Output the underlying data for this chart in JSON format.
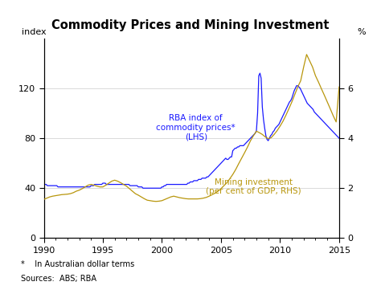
{
  "title": "Commodity Prices and Mining Investment",
  "left_label": "index",
  "right_label": "%",
  "footnote1": "*    In Australian dollar terms",
  "footnote2": "Sources:  ABS; RBA",
  "lhs_label": "RBA index of\ncommodity prices*\n(LHS)",
  "rhs_label": "Mining investment\n(per cent of GDP, RHS)",
  "lhs_color": "#1a1aff",
  "rhs_color": "#b8960c",
  "xlim": [
    1990,
    2015
  ],
  "lhs_ylim": [
    0,
    160
  ],
  "rhs_ylim": [
    0,
    8
  ],
  "lhs_yticks": [
    0,
    40,
    80,
    120
  ],
  "rhs_yticks": [
    0,
    2,
    4,
    6
  ],
  "xticks": [
    1990,
    1995,
    2000,
    2005,
    2010,
    2015
  ],
  "commodity_years": [
    1990.0,
    1990.1,
    1990.2,
    1990.3,
    1990.4,
    1990.5,
    1990.6,
    1990.7,
    1990.8,
    1990.9,
    1991.0,
    1991.1,
    1991.2,
    1991.3,
    1991.4,
    1991.5,
    1991.6,
    1991.7,
    1991.8,
    1991.9,
    1992.0,
    1992.1,
    1992.2,
    1992.3,
    1992.4,
    1992.5,
    1992.6,
    1992.7,
    1992.8,
    1992.9,
    1993.0,
    1993.1,
    1993.2,
    1993.3,
    1993.4,
    1993.5,
    1993.6,
    1993.7,
    1993.8,
    1993.9,
    1994.0,
    1994.1,
    1994.2,
    1994.3,
    1994.4,
    1994.5,
    1994.6,
    1994.7,
    1994.8,
    1994.9,
    1995.0,
    1995.1,
    1995.2,
    1995.3,
    1995.4,
    1995.5,
    1995.6,
    1995.7,
    1995.8,
    1995.9,
    1996.0,
    1996.1,
    1996.2,
    1996.3,
    1996.4,
    1996.5,
    1996.6,
    1996.7,
    1996.8,
    1996.9,
    1997.0,
    1997.1,
    1997.2,
    1997.3,
    1997.4,
    1997.5,
    1997.6,
    1997.7,
    1997.8,
    1997.9,
    1998.0,
    1998.1,
    1998.2,
    1998.3,
    1998.4,
    1998.5,
    1998.6,
    1998.7,
    1998.8,
    1998.9,
    1999.0,
    1999.1,
    1999.2,
    1999.3,
    1999.4,
    1999.5,
    1999.6,
    1999.7,
    1999.8,
    1999.9,
    2000.0,
    2000.1,
    2000.2,
    2000.3,
    2000.4,
    2000.5,
    2000.6,
    2000.7,
    2000.8,
    2000.9,
    2001.0,
    2001.1,
    2001.2,
    2001.3,
    2001.4,
    2001.5,
    2001.6,
    2001.7,
    2001.8,
    2001.9,
    2002.0,
    2002.1,
    2002.2,
    2002.3,
    2002.4,
    2002.5,
    2002.6,
    2002.7,
    2002.8,
    2002.9,
    2003.0,
    2003.1,
    2003.2,
    2003.3,
    2003.4,
    2003.5,
    2003.6,
    2003.7,
    2003.8,
    2003.9,
    2004.0,
    2004.1,
    2004.2,
    2004.3,
    2004.4,
    2004.5,
    2004.6,
    2004.7,
    2004.8,
    2004.9,
    2005.0,
    2005.1,
    2005.2,
    2005.3,
    2005.4,
    2005.5,
    2005.6,
    2005.7,
    2005.8,
    2005.9,
    2006.0,
    2006.1,
    2006.2,
    2006.3,
    2006.4,
    2006.5,
    2006.6,
    2006.7,
    2006.8,
    2006.9,
    2007.0,
    2007.1,
    2007.2,
    2007.3,
    2007.4,
    2007.5,
    2007.6,
    2007.7,
    2007.8,
    2007.9,
    2008.0,
    2008.1,
    2008.2,
    2008.3,
    2008.4,
    2008.5,
    2008.6,
    2008.7,
    2008.8,
    2008.9,
    2009.0,
    2009.1,
    2009.2,
    2009.3,
    2009.4,
    2009.5,
    2009.6,
    2009.7,
    2009.8,
    2009.9,
    2010.0,
    2010.1,
    2010.2,
    2010.3,
    2010.4,
    2010.5,
    2010.6,
    2010.7,
    2010.8,
    2010.9,
    2011.0,
    2011.1,
    2011.2,
    2011.3,
    2011.4,
    2011.5,
    2011.6,
    2011.7,
    2011.8,
    2011.9,
    2012.0,
    2012.1,
    2012.2,
    2012.3,
    2012.4,
    2012.5,
    2012.6,
    2012.7,
    2012.8,
    2012.9,
    2013.0,
    2013.1,
    2013.2,
    2013.3,
    2013.4,
    2013.5,
    2013.6,
    2013.7,
    2013.8,
    2013.9,
    2014.0,
    2014.1,
    2014.2,
    2014.3,
    2014.4,
    2014.5,
    2014.6,
    2014.7,
    2014.8,
    2014.9,
    2015.0
  ],
  "commodity_values": [
    43,
    43,
    43,
    42,
    42,
    42,
    42,
    42,
    42,
    42,
    42,
    42,
    41,
    41,
    41,
    41,
    41,
    41,
    41,
    41,
    41,
    41,
    41,
    41,
    41,
    41,
    41,
    41,
    41,
    41,
    41,
    41,
    41,
    41,
    41,
    41,
    41,
    41,
    41,
    41,
    42,
    42,
    42,
    43,
    43,
    43,
    43,
    43,
    43,
    43,
    44,
    44,
    44,
    43,
    43,
    43,
    43,
    43,
    43,
    43,
    43,
    43,
    43,
    43,
    43,
    43,
    43,
    43,
    43,
    43,
    43,
    43,
    43,
    42,
    42,
    42,
    42,
    42,
    42,
    42,
    41,
    41,
    41,
    41,
    40,
    40,
    40,
    40,
    40,
    40,
    40,
    40,
    40,
    40,
    40,
    40,
    40,
    40,
    40,
    40,
    41,
    41,
    42,
    42,
    43,
    43,
    43,
    43,
    43,
    43,
    43,
    43,
    43,
    43,
    43,
    43,
    43,
    43,
    43,
    43,
    43,
    43,
    44,
    44,
    45,
    45,
    45,
    46,
    46,
    46,
    46,
    47,
    47,
    47,
    48,
    48,
    48,
    48,
    49,
    49,
    50,
    51,
    52,
    53,
    54,
    55,
    56,
    57,
    58,
    59,
    60,
    61,
    62,
    63,
    64,
    63,
    63,
    64,
    65,
    65,
    70,
    71,
    72,
    72,
    73,
    73,
    74,
    74,
    74,
    74,
    75,
    76,
    77,
    78,
    79,
    80,
    81,
    82,
    83,
    84,
    86,
    100,
    130,
    132,
    128,
    105,
    95,
    88,
    82,
    79,
    78,
    80,
    82,
    83,
    85,
    86,
    88,
    89,
    90,
    91,
    93,
    95,
    97,
    99,
    101,
    103,
    105,
    107,
    109,
    110,
    112,
    115,
    118,
    120,
    122,
    122,
    121,
    120,
    118,
    116,
    114,
    112,
    110,
    108,
    107,
    106,
    105,
    104,
    103,
    101,
    100,
    99,
    98,
    97,
    96,
    95,
    94,
    93,
    92,
    91,
    90,
    89,
    88,
    87,
    86,
    85,
    84,
    83,
    82,
    81,
    80
  ],
  "mining_years": [
    1990.0,
    1990.25,
    1990.5,
    1990.75,
    1991.0,
    1991.25,
    1991.5,
    1991.75,
    1992.0,
    1992.25,
    1992.5,
    1992.75,
    1993.0,
    1993.25,
    1993.5,
    1993.75,
    1994.0,
    1994.25,
    1994.5,
    1994.75,
    1995.0,
    1995.25,
    1995.5,
    1995.75,
    1996.0,
    1996.25,
    1996.5,
    1996.75,
    1997.0,
    1997.25,
    1997.5,
    1997.75,
    1998.0,
    1998.25,
    1998.5,
    1998.75,
    1999.0,
    1999.25,
    1999.5,
    1999.75,
    2000.0,
    2000.25,
    2000.5,
    2000.75,
    2001.0,
    2001.25,
    2001.5,
    2001.75,
    2002.0,
    2002.25,
    2002.5,
    2002.75,
    2003.0,
    2003.25,
    2003.5,
    2003.75,
    2004.0,
    2004.25,
    2004.5,
    2004.75,
    2005.0,
    2005.25,
    2005.5,
    2005.75,
    2006.0,
    2006.25,
    2006.5,
    2006.75,
    2007.0,
    2007.25,
    2007.5,
    2007.75,
    2008.0,
    2008.25,
    2008.5,
    2008.75,
    2009.0,
    2009.25,
    2009.5,
    2009.75,
    2010.0,
    2010.25,
    2010.5,
    2010.75,
    2011.0,
    2011.25,
    2011.5,
    2011.75,
    2012.0,
    2012.25,
    2012.5,
    2012.75,
    2013.0,
    2013.25,
    2013.5,
    2013.75,
    2014.0,
    2014.25,
    2014.5,
    2014.75,
    2015.0
  ],
  "mining_values": [
    1.55,
    1.6,
    1.65,
    1.68,
    1.7,
    1.72,
    1.74,
    1.75,
    1.76,
    1.78,
    1.82,
    1.88,
    1.92,
    1.98,
    2.05,
    2.12,
    2.15,
    2.12,
    2.08,
    2.05,
    2.05,
    2.12,
    2.2,
    2.28,
    2.32,
    2.28,
    2.22,
    2.15,
    2.08,
    1.98,
    1.88,
    1.78,
    1.72,
    1.65,
    1.58,
    1.52,
    1.5,
    1.48,
    1.47,
    1.48,
    1.5,
    1.55,
    1.6,
    1.65,
    1.68,
    1.65,
    1.62,
    1.6,
    1.58,
    1.57,
    1.57,
    1.57,
    1.57,
    1.58,
    1.6,
    1.63,
    1.68,
    1.74,
    1.8,
    1.88,
    1.98,
    2.1,
    2.22,
    2.38,
    2.55,
    2.75,
    2.98,
    3.2,
    3.42,
    3.65,
    3.9,
    4.1,
    4.28,
    4.22,
    4.15,
    4.05,
    3.98,
    4.02,
    4.15,
    4.3,
    4.48,
    4.68,
    4.92,
    5.18,
    5.45,
    5.75,
    6.05,
    6.3,
    6.85,
    7.35,
    7.1,
    6.85,
    6.5,
    6.25,
    5.98,
    5.72,
    5.45,
    5.18,
    4.9,
    4.65,
    6.05
  ]
}
